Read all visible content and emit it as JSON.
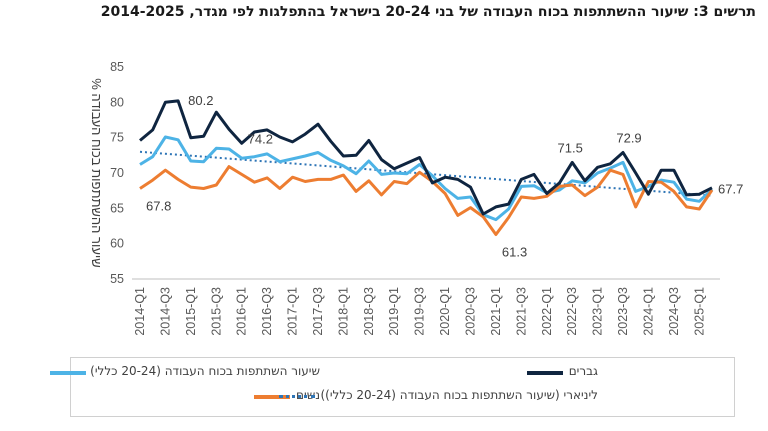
{
  "page_title": "תרשים 3: שיעור ההשתתפות בכוח העבודה של בני 20-24 בישראל בהתפלגות לפי מגדר, 2014-2025",
  "chart_data": {
    "type": "line",
    "ylabel": "% שיעור ההשתתפות בכוח העבודה",
    "ylim": [
      55,
      85
    ],
    "yticks": [
      55,
      60,
      65,
      70,
      75,
      80,
      85
    ],
    "x": [
      "2014-Q1",
      "2014-Q2",
      "2014-Q3",
      "2014-Q4",
      "2015-Q1",
      "2015-Q2",
      "2015-Q3",
      "2015-Q4",
      "2016-Q1",
      "2016-Q2",
      "2016-Q3",
      "2016-Q4",
      "2017-Q1",
      "2017-Q2",
      "2017-Q3",
      "2017-Q4",
      "2018-Q1",
      "2018-Q2",
      "2018-Q3",
      "2018-Q4",
      "2019-Q1",
      "2019-Q2",
      "2019-Q3",
      "2019-Q4",
      "2020-Q1",
      "2020-Q2",
      "2020-Q3",
      "2020-Q4",
      "2021-Q1",
      "2021-Q2",
      "2021-Q3",
      "2021-Q4",
      "2022-Q1",
      "2022-Q2",
      "2022-Q3",
      "2022-Q4",
      "2023-Q1",
      "2023-Q2",
      "2023-Q3",
      "2023-Q4",
      "2024-Q1",
      "2024-Q2",
      "2024-Q3",
      "2024-Q4",
      "2025-Q1",
      "2025-Q2"
    ],
    "xtick_labels": [
      "2014-Q1",
      "2014-Q3",
      "2015-Q1",
      "2015-Q3",
      "2016-Q1",
      "2016-Q3",
      "2017-Q1",
      "2017-Q3",
      "2018-Q1",
      "2018-Q3",
      "2019-Q1",
      "2019-Q3",
      "2020-Q1",
      "2020-Q3",
      "2021-Q1",
      "2021-Q3",
      "2022-Q1",
      "2022-Q3",
      "2023-Q1",
      "2023-Q3",
      "2024-Q1",
      "2024-Q3",
      "2025-Q1"
    ],
    "series": [
      {
        "name": "שיעור השתתפות בכוח העבודה (20-24 כללי)",
        "color": "#4db3e6",
        "values": [
          71.2,
          72.3,
          75.1,
          74.7,
          71.7,
          71.6,
          73.5,
          73.4,
          72.1,
          72.3,
          72.7,
          71.6,
          72.0,
          72.4,
          72.9,
          71.8,
          71.0,
          69.9,
          71.7,
          69.8,
          70.0,
          69.9,
          71.2,
          69.6,
          67.8,
          66.4,
          66.6,
          64.1,
          63.4,
          64.9,
          68.1,
          68.2,
          67.2,
          67.6,
          68.9,
          68.6,
          70.0,
          70.7,
          71.5,
          67.4,
          68.1,
          69.0,
          68.7,
          66.3,
          66.0,
          67.7
        ]
      },
      {
        "name": "גברים",
        "color": "#0f2540",
        "values": [
          74.6,
          76.1,
          80.0,
          80.2,
          75.0,
          75.2,
          78.6,
          76.2,
          74.2,
          75.8,
          76.1,
          75.1,
          74.4,
          75.5,
          76.9,
          74.5,
          72.4,
          72.5,
          74.6,
          71.9,
          70.6,
          71.4,
          72.2,
          68.6,
          69.4,
          69.1,
          68.0,
          64.2,
          65.2,
          65.6,
          69.1,
          69.8,
          67.1,
          68.6,
          71.5,
          68.9,
          70.8,
          71.3,
          72.9,
          70.0,
          67.0,
          70.4,
          70.4,
          66.9,
          67.0,
          67.9
        ]
      },
      {
        "name": "נשים",
        "color": "#ed7d31",
        "values": [
          67.8,
          69.0,
          70.4,
          69.1,
          68.0,
          67.8,
          68.3,
          70.9,
          69.8,
          68.7,
          69.3,
          67.8,
          69.4,
          68.8,
          69.1,
          69.1,
          69.7,
          67.4,
          68.9,
          66.9,
          68.8,
          68.5,
          70.1,
          68.8,
          67.1,
          64.0,
          65.1,
          63.8,
          61.3,
          63.7,
          66.6,
          66.4,
          66.7,
          68.1,
          68.3,
          66.8,
          68.0,
          70.4,
          69.8,
          65.2,
          68.8,
          68.7,
          67.4,
          65.2,
          64.9,
          67.6
        ]
      }
    ],
    "trendline": {
      "name": "ליניארי (שיעור השתתפות בכוח העבודה (20-24 כללי))",
      "color": "#2e75b6",
      "style": "dotted",
      "start": 73.0,
      "end": 66.8
    },
    "annotations": [
      {
        "text": "80.2",
        "x": "2014-Q4",
        "y": 80.2,
        "position": "right"
      },
      {
        "text": "74.2",
        "x": "2016-Q1",
        "y": 74.2,
        "position": "right"
      },
      {
        "text": "67.8",
        "x": "2014-Q1",
        "y": 67.8,
        "position": "below"
      },
      {
        "text": "61.3",
        "x": "2021-Q1",
        "y": 61.3,
        "position": "below-right"
      },
      {
        "text": "71.5",
        "x": "2022-Q3",
        "y": 71.5,
        "position": "above"
      },
      {
        "text": "72.9",
        "x": "2023-Q3",
        "y": 72.9,
        "position": "above-right"
      },
      {
        "text": "67.7",
        "x": "2025-Q2",
        "y": 67.7,
        "position": "right"
      }
    ],
    "grid": false,
    "legend_position": "bottom"
  }
}
